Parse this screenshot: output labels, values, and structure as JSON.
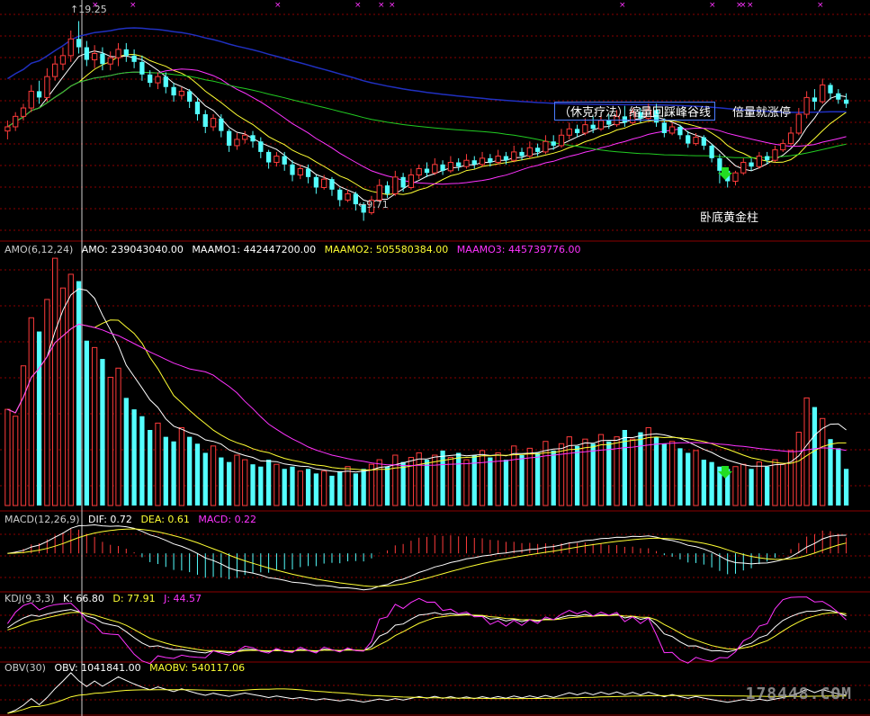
{
  "theme": {
    "bg": "#000000",
    "up": "#ff3b3b",
    "down": "#54ffff",
    "grid": "#8b0000",
    "white": "#ffffff",
    "yellow": "#ffff33",
    "magenta": "#ff33ff",
    "green": "#22cc22",
    "blue": "#2030c0"
  },
  "main": {
    "high_label": "19.25",
    "low_label": "9.71",
    "annotation_box": "（休克疗法）缩量回踩峰谷线",
    "annotation_right": "倍量就涨停",
    "annotation_bottom": "卧底黄金柱"
  },
  "amo_panel": {
    "name": "AMO(6,12,24)",
    "amo": "AMO: 239043040.00",
    "maamo1": "MAAMO1: 442447200.00",
    "maamo2": "MAAMO2: 505580384.00",
    "maamo3": "MAAMO3: 445739776.00"
  },
  "macd_panel": {
    "name": "MACD(12,26,9)",
    "dif": "DIF: 0.72",
    "dea": "DEA: 0.61",
    "macd": "MACD: 0.22"
  },
  "kdj_panel": {
    "name": "KDJ(9,3,3)",
    "k": "K: 66.80",
    "d": "D: 77.91",
    "j": "J: 44.57"
  },
  "obv_panel": {
    "name": "OBV(30)",
    "obv": "OBV: 1041841.00",
    "maobv": "MAOBV: 540117.06"
  },
  "watermark": "178448.COM",
  "chart_data": {
    "type": "candlestick",
    "price_ylim": [
      9.0,
      20.0
    ],
    "high": 19.25,
    "low": 9.71,
    "candles": [
      [
        14.0,
        14.2,
        13.6,
        14.5
      ],
      [
        14.2,
        14.7,
        14.0,
        14.9
      ],
      [
        14.7,
        15.1,
        14.5,
        15.3
      ],
      [
        15.1,
        15.9,
        14.9,
        16.2
      ],
      [
        15.9,
        15.6,
        15.3,
        16.4
      ],
      [
        15.6,
        16.6,
        15.4,
        17.0
      ],
      [
        16.6,
        17.2,
        16.4,
        17.6
      ],
      [
        17.2,
        17.6,
        16.9,
        18.0
      ],
      [
        17.6,
        18.4,
        17.3,
        18.8
      ],
      [
        18.4,
        18.0,
        17.7,
        19.25
      ],
      [
        18.0,
        17.4,
        17.1,
        18.3
      ],
      [
        17.4,
        17.7,
        17.0,
        18.1
      ],
      [
        17.7,
        17.2,
        16.9,
        18.0
      ],
      [
        17.2,
        17.5,
        16.9,
        17.8
      ],
      [
        17.5,
        17.9,
        17.1,
        18.2
      ],
      [
        17.9,
        17.6,
        17.3,
        18.2
      ],
      [
        17.6,
        17.3,
        17.0,
        17.9
      ],
      [
        17.3,
        16.7,
        16.4,
        17.6
      ],
      [
        16.7,
        16.3,
        16.1,
        16.9
      ],
      [
        16.3,
        16.6,
        16.0,
        16.8
      ],
      [
        16.6,
        16.1,
        15.8,
        16.8
      ],
      [
        16.1,
        15.7,
        15.4,
        16.3
      ],
      [
        15.7,
        15.9,
        15.5,
        16.1
      ],
      [
        15.9,
        15.4,
        15.1,
        16.0
      ],
      [
        15.4,
        14.8,
        14.5,
        15.6
      ],
      [
        14.8,
        14.2,
        13.9,
        15.0
      ],
      [
        14.2,
        14.6,
        14.0,
        14.8
      ],
      [
        14.6,
        14.0,
        13.7,
        14.8
      ],
      [
        14.0,
        13.3,
        13.0,
        14.1
      ],
      [
        13.3,
        13.6,
        13.1,
        13.9
      ],
      [
        13.6,
        13.8,
        13.4,
        14.0
      ],
      [
        13.8,
        13.5,
        13.2,
        14.0
      ],
      [
        13.5,
        13.0,
        12.7,
        13.7
      ],
      [
        13.0,
        12.5,
        12.2,
        13.1
      ],
      [
        12.5,
        12.8,
        12.3,
        13.0
      ],
      [
        12.8,
        12.4,
        12.1,
        13.0
      ],
      [
        12.4,
        11.9,
        11.6,
        12.6
      ],
      [
        11.9,
        12.2,
        11.7,
        12.4
      ],
      [
        12.2,
        11.8,
        11.5,
        12.4
      ],
      [
        11.8,
        11.3,
        11.0,
        11.9
      ],
      [
        11.3,
        11.7,
        11.2,
        11.9
      ],
      [
        11.7,
        11.2,
        10.9,
        11.8
      ],
      [
        11.2,
        10.7,
        10.4,
        11.3
      ],
      [
        10.7,
        11.0,
        10.6,
        11.2
      ],
      [
        11.0,
        10.5,
        10.2,
        11.1
      ],
      [
        10.5,
        10.1,
        9.71,
        10.6
      ],
      [
        10.1,
        10.7,
        10.0,
        10.9
      ],
      [
        10.7,
        11.4,
        10.6,
        11.7
      ],
      [
        11.4,
        11.0,
        10.8,
        11.6
      ],
      [
        11.0,
        11.8,
        10.9,
        12.1
      ],
      [
        11.8,
        11.3,
        11.1,
        12.0
      ],
      [
        11.3,
        11.9,
        11.2,
        12.2
      ],
      [
        11.9,
        12.2,
        11.7,
        12.4
      ],
      [
        12.2,
        12.0,
        11.8,
        12.5
      ],
      [
        12.0,
        12.4,
        11.9,
        12.7
      ],
      [
        12.4,
        12.1,
        11.9,
        12.6
      ],
      [
        12.1,
        12.5,
        12.0,
        12.8
      ],
      [
        12.5,
        12.3,
        12.1,
        12.7
      ],
      [
        12.3,
        12.6,
        12.2,
        12.9
      ],
      [
        12.6,
        12.4,
        12.2,
        12.8
      ],
      [
        12.4,
        12.7,
        12.3,
        13.0
      ],
      [
        12.7,
        12.5,
        12.3,
        12.9
      ],
      [
        12.5,
        12.8,
        12.4,
        13.1
      ],
      [
        12.8,
        12.6,
        12.4,
        13.0
      ],
      [
        12.6,
        13.0,
        12.5,
        13.3
      ],
      [
        13.0,
        12.8,
        12.6,
        13.2
      ],
      [
        12.8,
        13.2,
        12.7,
        13.5
      ],
      [
        13.2,
        13.0,
        12.8,
        13.4
      ],
      [
        13.0,
        13.5,
        12.9,
        13.8
      ],
      [
        13.5,
        13.3,
        13.1,
        13.8
      ],
      [
        13.3,
        13.8,
        13.2,
        14.1
      ],
      [
        13.8,
        14.1,
        13.6,
        14.4
      ],
      [
        14.1,
        13.9,
        13.7,
        14.3
      ],
      [
        13.9,
        14.3,
        13.8,
        14.6
      ],
      [
        14.3,
        14.1,
        13.9,
        14.7
      ],
      [
        14.1,
        14.5,
        14.0,
        14.8
      ],
      [
        14.5,
        14.3,
        14.1,
        14.8
      ],
      [
        14.3,
        14.7,
        14.2,
        15.0
      ],
      [
        14.7,
        14.4,
        14.2,
        15.2
      ],
      [
        14.4,
        14.9,
        14.3,
        15.1
      ],
      [
        14.9,
        14.6,
        14.4,
        15.1
      ],
      [
        14.6,
        15.0,
        14.5,
        15.3
      ],
      [
        15.0,
        14.4,
        14.2,
        15.3
      ],
      [
        14.4,
        13.9,
        13.7,
        14.6
      ],
      [
        13.9,
        14.2,
        13.8,
        14.4
      ],
      [
        14.2,
        13.8,
        13.6,
        14.3
      ],
      [
        13.8,
        13.4,
        13.2,
        14.0
      ],
      [
        13.4,
        13.7,
        13.3,
        13.9
      ],
      [
        13.7,
        13.3,
        13.1,
        13.8
      ],
      [
        13.3,
        12.7,
        12.5,
        13.4
      ],
      [
        12.7,
        12.1,
        11.5,
        12.9
      ],
      [
        12.1,
        11.6,
        11.3,
        12.2
      ],
      [
        11.6,
        12.0,
        11.4,
        12.1
      ],
      [
        12.0,
        12.5,
        11.9,
        12.7
      ],
      [
        12.5,
        12.3,
        12.1,
        12.7
      ],
      [
        12.3,
        12.8,
        12.2,
        13.0
      ],
      [
        12.8,
        12.6,
        12.4,
        13.0
      ],
      [
        12.6,
        13.1,
        12.5,
        13.3
      ],
      [
        13.1,
        13.4,
        13.0,
        13.6
      ],
      [
        13.4,
        13.9,
        13.3,
        14.2
      ],
      [
        13.9,
        14.8,
        13.8,
        15.1
      ],
      [
        14.8,
        15.6,
        14.6,
        15.9
      ],
      [
        15.6,
        15.4,
        15.0,
        16.0
      ],
      [
        15.4,
        16.2,
        15.3,
        16.5
      ],
      [
        16.2,
        15.8,
        15.5,
        16.3
      ],
      [
        15.8,
        15.5,
        15.3,
        16.0
      ],
      [
        15.5,
        15.3,
        15.1,
        15.8
      ]
    ],
    "amo_values": [
      420,
      390,
      610,
      820,
      760,
      900,
      1080,
      950,
      1010,
      980,
      720,
      690,
      640,
      560,
      600,
      470,
      420,
      390,
      330,
      360,
      300,
      280,
      340,
      300,
      270,
      230,
      260,
      210,
      190,
      220,
      200,
      180,
      170,
      200,
      180,
      160,
      170,
      150,
      160,
      140,
      150,
      130,
      150,
      170,
      140,
      160,
      180,
      200,
      170,
      220,
      190,
      210,
      230,
      200,
      220,
      240,
      210,
      230,
      200,
      220,
      240,
      210,
      230,
      200,
      260,
      220,
      250,
      230,
      280,
      240,
      270,
      300,
      260,
      290,
      270,
      310,
      280,
      300,
      330,
      290,
      320,
      340,
      300,
      270,
      280,
      250,
      230,
      240,
      200,
      190,
      170,
      160,
      170,
      180,
      160,
      190,
      170,
      200,
      180,
      240,
      320,
      470,
      430,
      380,
      290,
      250,
      160
    ],
    "amo_ylim": [
      0,
      1100
    ],
    "macd_ylim": [
      -1.2,
      1.0
    ],
    "kdj_ylim": [
      0,
      100
    ]
  }
}
